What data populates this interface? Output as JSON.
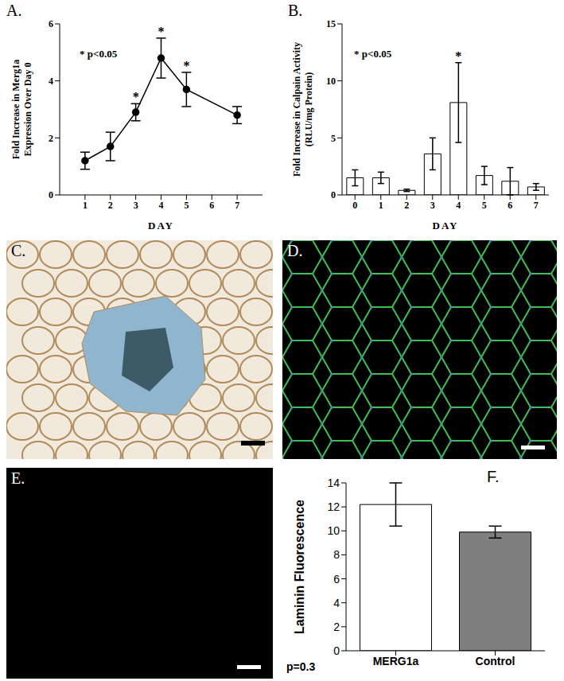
{
  "chart_data": [
    {
      "type": "line",
      "title": "A.",
      "x_label": "DAY",
      "y_label": [
        "Fold Increase in Merg1a",
        "Expression Over Day 0"
      ],
      "annotations": [
        "* p<0.05"
      ],
      "x": [
        1,
        2,
        3,
        4,
        5,
        7
      ],
      "values": [
        1.2,
        1.7,
        2.9,
        4.8,
        3.7,
        2.8
      ],
      "errors": [
        0.3,
        0.5,
        0.3,
        0.7,
        0.6,
        0.3
      ],
      "significance": {
        "label": "*",
        "flags": [
          false,
          false,
          true,
          true,
          true,
          false
        ]
      },
      "color": "#000000",
      "marker": "circle",
      "xlim": [
        0,
        8
      ],
      "xticks": [
        1,
        2,
        3,
        4,
        5,
        6,
        7
      ],
      "ylim": [
        0,
        6
      ],
      "yticks": [
        0,
        2,
        4,
        6
      ],
      "grid": false
    },
    {
      "type": "bar",
      "title": "B.",
      "x_label": "DAY",
      "y_label": [
        "Fold Increase in Calpain Activity",
        "(RLU/mg Protein)"
      ],
      "annotations": [
        "* p<0.05"
      ],
      "categories": [
        "0",
        "1",
        "2",
        "3",
        "4",
        "5",
        "6",
        "7"
      ],
      "values": [
        1.5,
        1.5,
        0.4,
        3.6,
        8.1,
        1.7,
        1.2,
        0.7
      ],
      "errors": [
        0.7,
        0.5,
        0.1,
        1.4,
        3.5,
        0.8,
        1.2,
        0.3
      ],
      "significance": {
        "label": "*",
        "flags": [
          false,
          false,
          false,
          false,
          true,
          false,
          false,
          false
        ]
      },
      "color": "#ffffff",
      "ylim": [
        0,
        15
      ],
      "yticks": [
        0,
        5,
        10,
        15
      ],
      "grid": false
    },
    {
      "type": "bar",
      "title": "F.",
      "y_label": [
        "Laminin Fluorescence"
      ],
      "annotations": [
        "p=0.3"
      ],
      "categories": [
        "MERG1a",
        "Control"
      ],
      "values": [
        12.2,
        9.9
      ],
      "errors": [
        1.8,
        0.5
      ],
      "colors": [
        "#ffffff",
        "#7f7f7f"
      ],
      "ylim": [
        0,
        14
      ],
      "yticks": [
        0,
        2,
        4,
        6,
        8,
        10,
        12,
        14
      ],
      "grid": false
    }
  ],
  "images": [
    {
      "label": "C."
    },
    {
      "label": "D."
    },
    {
      "label": "E."
    }
  ]
}
